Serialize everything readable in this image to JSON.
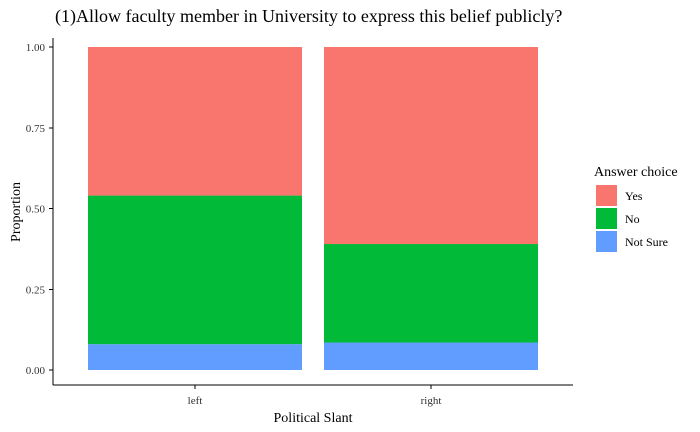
{
  "chart_data": {
    "type": "bar",
    "stacked": true,
    "title": "(1)Allow faculty member in University to express this belief publicly?",
    "xlabel": "Political Slant",
    "ylabel": "Proportion",
    "categories": [
      "left",
      "right"
    ],
    "ylim": [
      0,
      1
    ],
    "yticks": [
      "0.00",
      "0.25",
      "0.50",
      "0.75",
      "1.00"
    ],
    "grid": false,
    "legend": {
      "title": "Answer choice",
      "placement": "right",
      "items": [
        "Yes",
        "No",
        "Not Sure"
      ]
    },
    "series": [
      {
        "name": "Not Sure",
        "values": [
          0.08,
          0.085
        ],
        "color": "#619CFF"
      },
      {
        "name": "No",
        "values": [
          0.46,
          0.305
        ],
        "color": "#00BA38"
      },
      {
        "name": "Yes",
        "values": [
          0.46,
          0.61
        ],
        "color": "#F8766D"
      }
    ]
  }
}
